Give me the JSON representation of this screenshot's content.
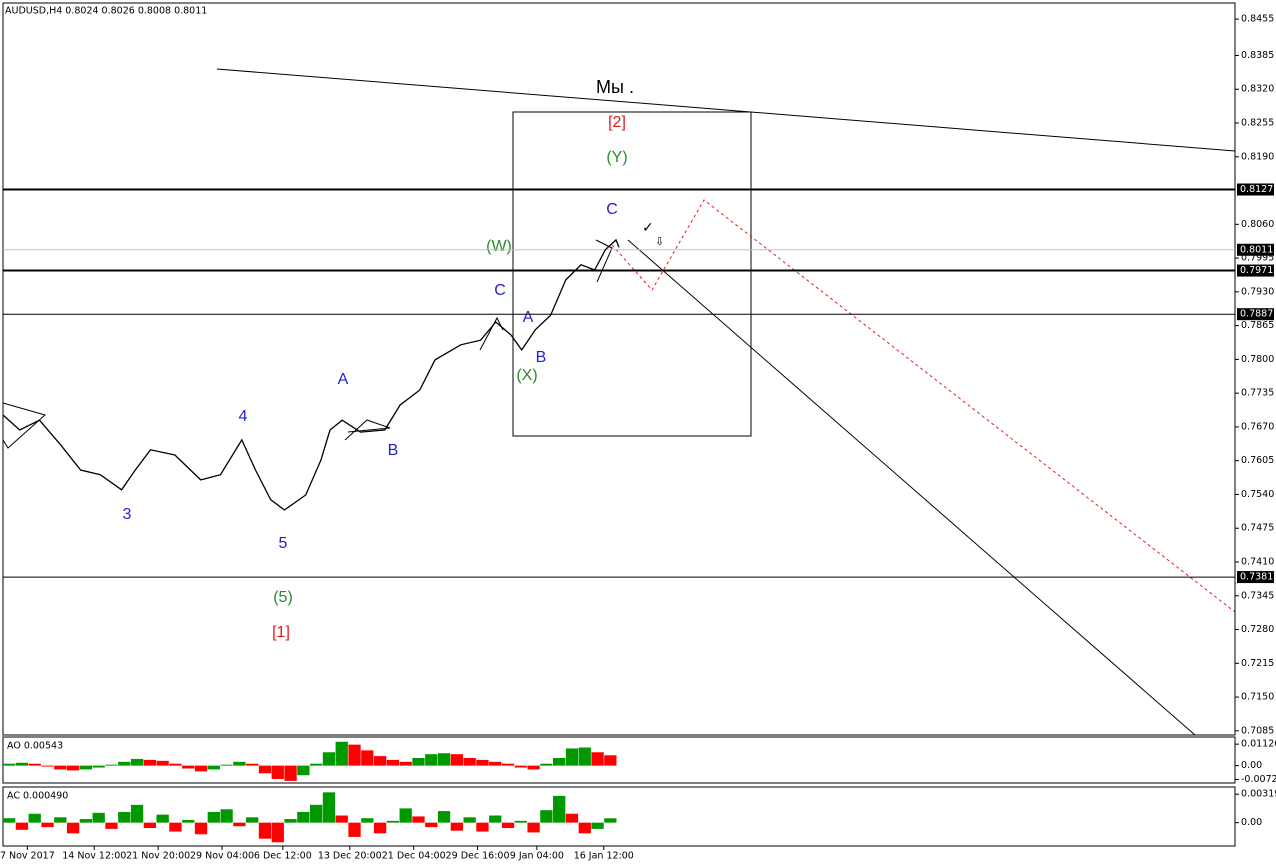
{
  "chart_data": [
    {
      "type": "line",
      "title": "AUDUSD,H4  0.8024 0.8026 0.8008 0.8011",
      "color": "#000000",
      "x": [
        0,
        11,
        24,
        38,
        51,
        64,
        78,
        87,
        97,
        113,
        130,
        143,
        157,
        166,
        176,
        185,
        199,
        209,
        215,
        223,
        235,
        251,
        261,
        274,
        284,
        301,
        314,
        324,
        334,
        341,
        350,
        360,
        370,
        380,
        389,
        396,
        403,
        405
      ],
      "values": [
        0.7693,
        0.7664,
        0.7683,
        0.7635,
        0.7587,
        0.7578,
        0.7549,
        0.7587,
        0.7626,
        0.7616,
        0.7568,
        0.7578,
        0.7645,
        0.7587,
        0.753,
        0.751,
        0.7539,
        0.7606,
        0.7664,
        0.7683,
        0.766,
        0.7664,
        0.7712,
        0.7741,
        0.7799,
        0.7828,
        0.7837,
        0.7872,
        0.7847,
        0.7818,
        0.7857,
        0.7885,
        0.7953,
        0.7982,
        0.7972,
        0.8011,
        0.803,
        0.8016
      ],
      "xlim": [
        0,
        810
      ],
      "xticks": [
        {
          "value": 16,
          "label": "7 Nov 2017"
        },
        {
          "value": 60,
          "label": "14 Nov 12:00"
        },
        {
          "value": 102,
          "label": "21 Nov 20:00"
        },
        {
          "value": 144,
          "label": "29 Nov 04:00"
        },
        {
          "value": 184,
          "label": "6 Dec 12:00"
        },
        {
          "value": 228,
          "label": "13 Dec 20:00"
        },
        {
          "value": 270,
          "label": "21 Dec 04:00"
        },
        {
          "value": 312,
          "label": "29 Dec 16:00"
        },
        {
          "value": 351,
          "label": "9 Jan 04:00"
        },
        {
          "value": 395,
          "label": "16 Jan 12:00"
        }
      ],
      "ylim": [
        0.7077,
        0.8486
      ],
      "yticks": [
        0.8455,
        0.8385,
        {
          "value": 0.832,
          "label": "0.8320"
        },
        0.8255,
        {
          "value": 0.819,
          "label": "0.8190"
        },
        {
          "value": 0.806,
          "label": "0.8060"
        },
        0.7995,
        {
          "value": 0.793,
          "label": "0.7930"
        },
        0.7865,
        {
          "value": 0.78,
          "label": "0.7800"
        },
        0.7735,
        {
          "value": 0.767,
          "label": "0.7670"
        },
        0.7605,
        {
          "value": 0.754,
          "label": "0.7540"
        },
        0.7475,
        {
          "value": 0.741,
          "label": "0.7410"
        },
        0.7345,
        {
          "value": 0.728,
          "label": "0.7280"
        },
        0.7215,
        {
          "value": 0.715,
          "label": "0.7150"
        },
        0.7085
      ],
      "levels": [
        {
          "value": 0.8127,
          "color": "#000000",
          "style": "thick"
        },
        {
          "value": 0.8011,
          "color": "#c0c0c0",
          "style": "thin"
        },
        {
          "value": 0.7971,
          "color": "#000000",
          "style": "thick"
        },
        {
          "value": 0.7887,
          "color": "#000000",
          "style": "thin"
        },
        {
          "value": 0.7381,
          "color": "#000000",
          "style": "thin"
        }
      ],
      "annotations": [
        {
          "text": "Мы .",
          "color": "#000000"
        },
        {
          "text": "[2]",
          "color": "#e01b1b"
        },
        {
          "text": "(Y)",
          "color": "#2a8a2a"
        },
        {
          "text": "C",
          "color": "#2323d0"
        },
        {
          "text": "(W)",
          "color": "#2a8a2a"
        },
        {
          "text": "C",
          "color": "#2323d0"
        },
        {
          "text": "A",
          "color": "#2323d0"
        },
        {
          "text": "B",
          "color": "#2323d0"
        },
        {
          "text": "(X)",
          "color": "#2a8a2a"
        },
        {
          "text": "A",
          "color": "#2323d0"
        },
        {
          "text": "4",
          "color": "#2323d0"
        },
        {
          "text": "B",
          "color": "#2323d0"
        },
        {
          "text": "3",
          "color": "#2323d0"
        },
        {
          "text": "5",
          "color": "#2323d0"
        },
        {
          "text": "(5)",
          "color": "#2a8a2a"
        },
        {
          "text": "[1]",
          "color": "#e01b1b"
        }
      ]
    },
    {
      "type": "bar",
      "title": "AO 0.00543",
      "up_color": "#009900",
      "down_color": "#ff0000",
      "values": [
        0.001,
        0.0015,
        0.001,
        -0.0005,
        -0.002,
        -0.0025,
        -0.002,
        -0.001,
        0.0005,
        0.002,
        0.0035,
        0.003,
        0.0025,
        0.001,
        -0.0015,
        -0.003,
        -0.002,
        0.0005,
        0.002,
        0.001,
        -0.004,
        -0.007,
        -0.008,
        -0.005,
        0.001,
        0.007,
        0.0125,
        0.011,
        0.008,
        0.005,
        0.003,
        0.002,
        0.004,
        0.006,
        0.0065,
        0.006,
        0.004,
        0.003,
        0.002,
        0.001,
        -0.001,
        -0.002,
        0.001,
        0.004,
        0.009,
        0.0095,
        0.007,
        0.00543
      ],
      "ylim": [
        -0.0091,
        0.015
      ],
      "yticks": [
        0.01126,
        {
          "value": 0,
          "label": "0.00"
        },
        -0.00724
      ]
    },
    {
      "type": "bar",
      "title": "AC 0.000490",
      "up_color": "#009900",
      "down_color": "#ff0000",
      "values": [
        0.0005,
        -0.0008,
        0.001,
        -0.0005,
        0.0006,
        -0.0012,
        0.0004,
        0.0011,
        -0.0007,
        0.0012,
        0.002,
        -0.0006,
        0.0009,
        -0.001,
        0.0003,
        -0.0013,
        0.0012,
        0.0015,
        -0.0004,
        0.0006,
        -0.0018,
        -0.0022,
        0.0004,
        0.0012,
        0.002,
        0.0034,
        0.0008,
        -0.0016,
        0.0005,
        -0.0012,
        0.0002,
        0.0016,
        0.0007,
        -0.0005,
        0.0013,
        -0.0009,
        0.0006,
        -0.001,
        0.0008,
        -0.0006,
        0.0002,
        -0.0011,
        0.0014,
        0.003,
        0.001,
        -0.0012,
        -0.0007,
        0.00049
      ],
      "ylim": [
        -0.00262,
        0.004
      ],
      "yticks": [
        0.003192,
        {
          "value": 0,
          "label": "0.00"
        }
      ]
    }
  ]
}
